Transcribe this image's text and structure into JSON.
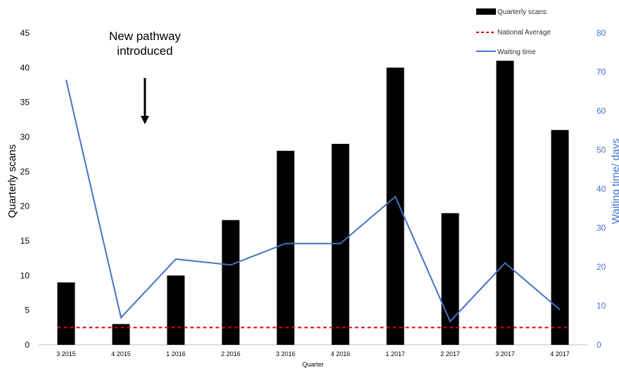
{
  "chart_data": {
    "type": "bar",
    "categories": [
      "3 2015",
      "4 2015",
      "1 2016",
      "2 2016",
      "3 2016",
      "4 2016",
      "1 2017",
      "2 2017",
      "3 2017",
      "4 2017"
    ],
    "series": [
      {
        "name": "Quarterly scans",
        "type": "bar",
        "axis": "left",
        "values": [
          9,
          3,
          10,
          18,
          28,
          29,
          40,
          19,
          41,
          31
        ]
      },
      {
        "name": "National Average",
        "type": "line",
        "style": "dashed",
        "axis": "left",
        "values": [
          2.5,
          2.5,
          2.5,
          2.5,
          2.5,
          2.5,
          2.5,
          2.5,
          2.5,
          2.5
        ]
      },
      {
        "name": "Waiting time",
        "type": "line",
        "axis": "right",
        "values": [
          68,
          7,
          22,
          20.5,
          26,
          26,
          38,
          6,
          21,
          9
        ]
      }
    ],
    "xlabel": "Quarter",
    "ylabel": "Quarterly scans",
    "ylabel_right": "Waiting time/ days",
    "ylim": [
      0,
      45
    ],
    "ylim_right": [
      0,
      80
    ],
    "yticks": [
      0,
      5,
      10,
      15,
      20,
      25,
      30,
      35,
      40,
      45
    ],
    "yticks_right": [
      0,
      10,
      20,
      30,
      40,
      50,
      60,
      70,
      80
    ],
    "annotation": {
      "lines": [
        "New pathway",
        "introduced"
      ],
      "arrow": "down",
      "position_category": "between 4 2015 and 1 2016"
    },
    "legend_position": "top-right",
    "grid": false,
    "colors": {
      "bar": "#000000",
      "national_average": "#E00000",
      "waiting_time": "#4472C4",
      "right_axis": "#4472C4"
    }
  }
}
